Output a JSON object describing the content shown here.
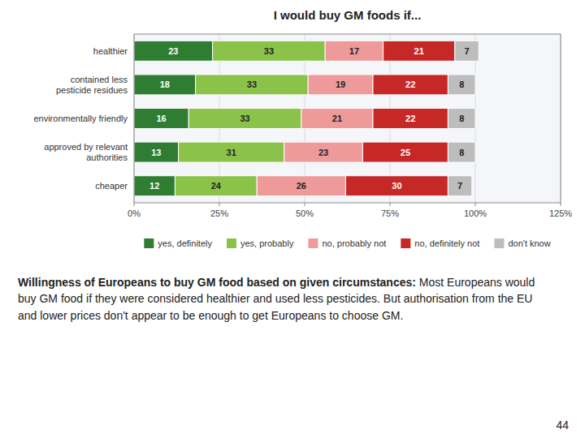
{
  "chart_data": {
    "type": "bar",
    "orientation": "horizontal",
    "stacked": true,
    "title": "I would buy GM foods if...",
    "categories": [
      "healthier",
      "contained less\npesticide residues",
      "environmentally friendly",
      "approved by relevant\nauthorities",
      "cheaper"
    ],
    "series": [
      {
        "name": "yes, definitely",
        "color": "#2e7d32",
        "values": [
          23,
          18,
          16,
          13,
          12
        ]
      },
      {
        "name": "yes, probably",
        "color": "#8bc34a",
        "values": [
          33,
          33,
          33,
          31,
          24
        ]
      },
      {
        "name": "no, probably not",
        "color": "#ef9a9a",
        "values": [
          17,
          19,
          21,
          23,
          26
        ]
      },
      {
        "name": "no, definitely not",
        "color": "#c62828",
        "values": [
          21,
          22,
          22,
          25,
          30
        ]
      },
      {
        "name": "don't know",
        "color": "#bdbdbd",
        "values": [
          7,
          8,
          8,
          8,
          7
        ]
      }
    ],
    "xlim": [
      0,
      125
    ],
    "xticks": [
      {
        "value": 0,
        "label": "0%"
      },
      {
        "value": 25,
        "label": "25%"
      },
      {
        "value": 50,
        "label": "50%"
      },
      {
        "value": 75,
        "label": "75%"
      },
      {
        "value": 100,
        "label": "100%"
      },
      {
        "value": 125,
        "label": "125%"
      }
    ],
    "grid": true,
    "data_labels": true,
    "legend": "bottom",
    "annotations": [
      "Willingness of Europeans to buy GM food based on given circumstances:",
      "Most Europeans would buy GM food if they were considered healthier and used less pesticides. But authorisation from the EU and lower prices don't appear to be enough to get Europeans to choose GM.",
      "44"
    ]
  }
}
